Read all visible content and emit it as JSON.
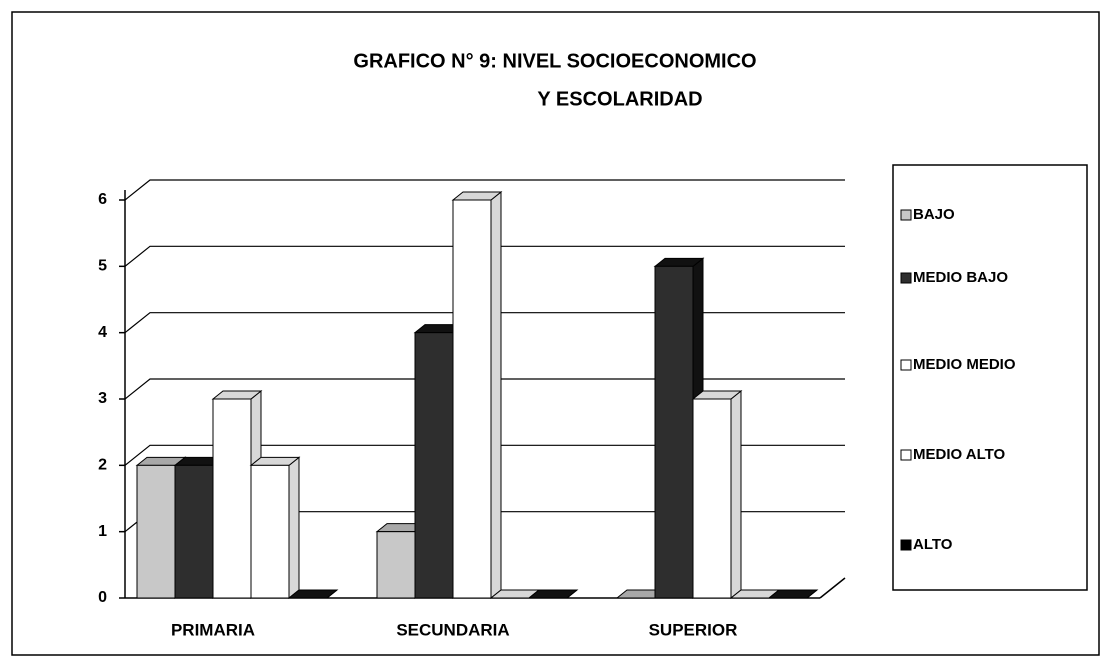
{
  "chart_data": {
    "type": "bar3d",
    "title": [
      "GRAFICO N° 9: NIVEL SOCIOECONOMICO",
      "Y ESCOLARIDAD"
    ],
    "categories": [
      "PRIMARIA",
      "SECUNDARIA",
      "SUPERIOR"
    ],
    "series": [
      {
        "name": "BAJO",
        "color": "#c8c8c8",
        "values": [
          2,
          1,
          0
        ]
      },
      {
        "name": "MEDIO BAJO",
        "color": "#2e2e2e",
        "values": [
          2,
          4,
          5
        ]
      },
      {
        "name": "MEDIO MEDIO",
        "color": "#ffffff",
        "values": [
          3,
          6,
          3
        ]
      },
      {
        "name": "MEDIO ALTO",
        "color": "#ffffff",
        "values": [
          2,
          0,
          0
        ]
      },
      {
        "name": "ALTO",
        "color": "#000000",
        "values": [
          0,
          0,
          0
        ]
      }
    ],
    "ylim": [
      0,
      6
    ],
    "yticks": [
      0,
      1,
      2,
      3,
      4,
      5,
      6
    ],
    "grid": true,
    "legend": "right"
  }
}
